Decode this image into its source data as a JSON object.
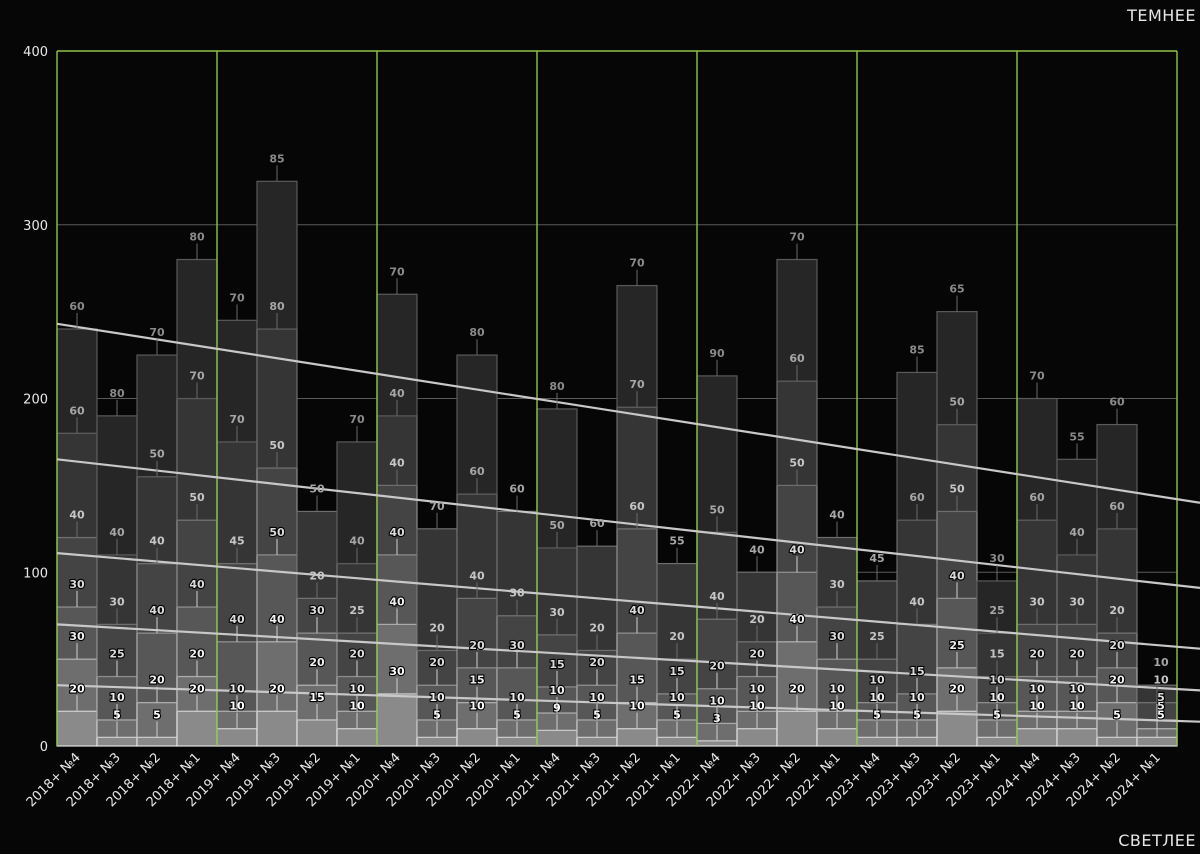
{
  "corner_labels": {
    "top": "ТЕМНЕЕ",
    "bottom": "СВЕТЛЕЕ"
  },
  "colors": {
    "background": "#060606",
    "group_lines": "#8fc24a",
    "grid": "#5a5a5a",
    "trend": "#c8c8c8",
    "text": "#e8e8e8"
  },
  "chart_data": {
    "type": "bar",
    "stacked": true,
    "ylim": [
      0,
      400
    ],
    "yticks": [
      0,
      100,
      200,
      300,
      400
    ],
    "grid": true,
    "categories": [
      "2018+ №4",
      "2018+ №3",
      "2018+ №2",
      "2018+ №1",
      "2019+ №4",
      "2019+ №3",
      "2019+ №2",
      "2019+ №1",
      "2020+ №4",
      "2020+ №3",
      "2020+ №2",
      "2020+ №1",
      "2021+ №4",
      "2021+ №3",
      "2021+ №2",
      "2021+ №1",
      "2022+ №4",
      "2022+ №3",
      "2022+ №2",
      "2022+ №1",
      "2023+ №4",
      "2023+ №3",
      "2023+ №2",
      "2023+ №1",
      "2024+ №4",
      "2024+ №3",
      "2024+ №2",
      "2024+ №1"
    ],
    "groups": [
      "2018+",
      "2019+",
      "2020+",
      "2021+",
      "2022+",
      "2023+",
      "2024+"
    ],
    "series": [
      {
        "values": [
          20,
          5,
          5,
          20,
          10,
          20,
          15,
          10,
          30,
          5,
          10,
          5,
          9,
          5,
          10,
          5,
          3,
          10,
          20,
          10,
          5,
          5,
          20,
          5,
          10,
          10,
          5,
          5
        ]
      },
      {
        "values": [
          30,
          10,
          20,
          20,
          10,
          40,
          20,
          10,
          40,
          10,
          15,
          10,
          10,
          10,
          15,
          10,
          10,
          10,
          40,
          10,
          10,
          10,
          25,
          10,
          10,
          10,
          20,
          5
        ]
      },
      {
        "values": [
          30,
          25,
          40,
          40,
          40,
          50,
          30,
          20,
          40,
          20,
          20,
          30,
          15,
          20,
          40,
          15,
          20,
          20,
          40,
          30,
          10,
          15,
          40,
          10,
          20,
          20,
          20,
          5
        ]
      },
      {
        "values": [
          40,
          30,
          40,
          50,
          45,
          50,
          20,
          25,
          40,
          20,
          40,
          30,
          30,
          20,
          60,
          20,
          40,
          20,
          50,
          30,
          25,
          40,
          50,
          15,
          30,
          30,
          20,
          10
        ]
      },
      {
        "values": [
          60,
          40,
          50,
          70,
          70,
          80,
          50,
          40,
          40,
          70,
          60,
          60,
          50,
          60,
          70,
          55,
          50,
          40,
          60,
          40,
          45,
          60,
          50,
          25,
          60,
          40,
          60,
          10
        ]
      },
      {
        "values": [
          60,
          80,
          70,
          80,
          70,
          85,
          0,
          70,
          70,
          0,
          80,
          0,
          80,
          0,
          70,
          0,
          90,
          0,
          70,
          0,
          0,
          85,
          65,
          30,
          70,
          55,
          60,
          0
        ]
      }
    ],
    "trend_lines": [
      {
        "y_start": 243,
        "y_end": 140
      },
      {
        "y_start": 165,
        "y_end": 91
      },
      {
        "y_start": 111,
        "y_end": 56
      },
      {
        "y_start": 70,
        "y_end": 32
      },
      {
        "y_start": 35,
        "y_end": 14
      }
    ]
  }
}
